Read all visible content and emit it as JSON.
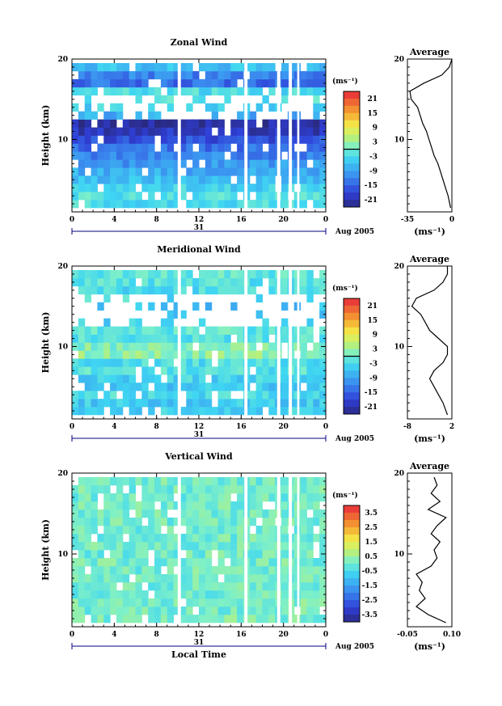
{
  "chart_data": [
    {
      "type": "heatmap",
      "title": "Zonal Wind",
      "ylabel": "Height (km)",
      "xlabel": "",
      "x_ticks": [
        "0",
        "4",
        "8",
        "12",
        "16",
        "20",
        "0"
      ],
      "y_ticks": [
        "10",
        "20"
      ],
      "xlim": [
        0,
        24
      ],
      "ylim": [
        1,
        20
      ],
      "date_label": "31",
      "month_label": "Aug 2005",
      "colorbar": {
        "unit": "(ms⁻¹)",
        "ticks": [
          "21",
          "15",
          "9",
          "3",
          "-3",
          "-9",
          "-15",
          "-21"
        ],
        "range": [
          -24,
          24
        ],
        "contour_at": 0
      },
      "rows": [
        {
          "z": 2,
          "v": -3
        },
        {
          "z": 3,
          "v": -2
        },
        {
          "z": 4,
          "v": -4
        },
        {
          "z": 5,
          "v": -6
        },
        {
          "z": 6,
          "v": -8
        },
        {
          "z": 7,
          "v": -10
        },
        {
          "z": 8,
          "v": -12
        },
        {
          "z": 9,
          "v": -14
        },
        {
          "z": 10,
          "v": -17
        },
        {
          "z": 11,
          "v": -20
        },
        {
          "z": 12,
          "v": -22
        },
        {
          "z": 13,
          "v": -8
        },
        {
          "z": 14,
          "v": -4
        },
        {
          "z": 15,
          "v": -2
        },
        {
          "z": 16,
          "v": -3
        },
        {
          "z": 17,
          "v": -14
        },
        {
          "z": 18,
          "v": -12
        },
        {
          "z": 19,
          "v": -6
        }
      ],
      "average": {
        "title": "Average",
        "xlabel": "(ms⁻¹)",
        "x_ticks": [
          "-35",
          "0"
        ],
        "xlim": [
          -35,
          0
        ],
        "y_ticks": [
          "10",
          "20"
        ],
        "profile": [
          {
            "z": 1.5,
            "v": -1
          },
          {
            "z": 3,
            "v": -3
          },
          {
            "z": 4,
            "v": -5
          },
          {
            "z": 5,
            "v": -7
          },
          {
            "z": 6,
            "v": -9
          },
          {
            "z": 7,
            "v": -11
          },
          {
            "z": 8,
            "v": -14
          },
          {
            "z": 9,
            "v": -16
          },
          {
            "z": 10,
            "v": -18
          },
          {
            "z": 11,
            "v": -20
          },
          {
            "z": 12,
            "v": -23
          },
          {
            "z": 13,
            "v": -25
          },
          {
            "z": 14,
            "v": -27
          },
          {
            "z": 15,
            "v": -32
          },
          {
            "z": 16,
            "v": -33
          },
          {
            "z": 17,
            "v": -22
          },
          {
            "z": 18,
            "v": -8
          },
          {
            "z": 19,
            "v": -2
          },
          {
            "z": 20,
            "v": 0
          }
        ]
      }
    },
    {
      "type": "heatmap",
      "title": "Meridional Wind",
      "ylabel": "Height (km)",
      "xlabel": "",
      "x_ticks": [
        "0",
        "4",
        "8",
        "12",
        "16",
        "20",
        "0"
      ],
      "y_ticks": [
        "10",
        "20"
      ],
      "xlim": [
        0,
        24
      ],
      "ylim": [
        1,
        20
      ],
      "date_label": "31",
      "month_label": "Aug 2005",
      "colorbar": {
        "unit": "(ms⁻¹)",
        "ticks": [
          "21",
          "15",
          "9",
          "3",
          "-3",
          "-9",
          "-15",
          "-21"
        ],
        "range": [
          -24,
          24
        ],
        "contour_at": 0
      },
      "rows": [
        {
          "z": 2,
          "v": -4
        },
        {
          "z": 3,
          "v": -5
        },
        {
          "z": 4,
          "v": -3
        },
        {
          "z": 5,
          "v": -5
        },
        {
          "z": 6,
          "v": -4
        },
        {
          "z": 7,
          "v": -2
        },
        {
          "z": 8,
          "v": -3
        },
        {
          "z": 9,
          "v": 2
        },
        {
          "z": 10,
          "v": 1
        },
        {
          "z": 11,
          "v": -2
        },
        {
          "z": 12,
          "v": -1
        },
        {
          "z": 13,
          "v": -4
        },
        {
          "z": 14,
          "v": -5
        },
        {
          "z": 15,
          "v": -6
        },
        {
          "z": 16,
          "v": -3
        },
        {
          "z": 17,
          "v": -3
        },
        {
          "z": 18,
          "v": -2
        },
        {
          "z": 19,
          "v": -1
        }
      ],
      "average": {
        "title": "Average",
        "xlabel": "(ms⁻¹)",
        "x_ticks": [
          "-8",
          "2"
        ],
        "xlim": [
          -8,
          2
        ],
        "y_ticks": [
          "10",
          "20"
        ],
        "profile": [
          {
            "z": 1.5,
            "v": 1
          },
          {
            "z": 3,
            "v": 0
          },
          {
            "z": 4,
            "v": -1
          },
          {
            "z": 5,
            "v": -2
          },
          {
            "z": 6,
            "v": -3
          },
          {
            "z": 7,
            "v": -2
          },
          {
            "z": 8,
            "v": 0
          },
          {
            "z": 9,
            "v": 1
          },
          {
            "z": 10,
            "v": 1
          },
          {
            "z": 11,
            "v": -1
          },
          {
            "z": 12,
            "v": -3
          },
          {
            "z": 13,
            "v": -4
          },
          {
            "z": 14,
            "v": -5
          },
          {
            "z": 15,
            "v": -7
          },
          {
            "z": 16,
            "v": -6
          },
          {
            "z": 17,
            "v": -2
          },
          {
            "z": 18,
            "v": 0
          },
          {
            "z": 19,
            "v": 1
          },
          {
            "z": 20,
            "v": 1
          }
        ]
      }
    },
    {
      "type": "heatmap",
      "title": "Vertical Wind",
      "ylabel": "Height (km)",
      "xlabel": "Local Time",
      "x_ticks": [
        "0",
        "4",
        "8",
        "12",
        "16",
        "20",
        "0"
      ],
      "y_ticks": [
        "10",
        "20"
      ],
      "xlim": [
        0,
        24
      ],
      "ylim": [
        1,
        20
      ],
      "date_label": "31",
      "month_label": "Aug 2005",
      "colorbar": {
        "unit": "(ms⁻¹)",
        "ticks": [
          "3.5",
          "2.5",
          "1.5",
          "0.5",
          "-0.5",
          "-1.5",
          "-2.5",
          "-3.5"
        ],
        "range": [
          -4,
          4
        ],
        "contour_at": null
      },
      "rows": [
        {
          "z": 2,
          "v": 0.1
        },
        {
          "z": 3,
          "v": 0.0
        },
        {
          "z": 4,
          "v": 0.1
        },
        {
          "z": 5,
          "v": 0.0
        },
        {
          "z": 6,
          "v": 0.0
        },
        {
          "z": 7,
          "v": 0.05
        },
        {
          "z": 8,
          "v": 0.0
        },
        {
          "z": 9,
          "v": 0.05
        },
        {
          "z": 10,
          "v": 0.0
        },
        {
          "z": 11,
          "v": 0.02
        },
        {
          "z": 12,
          "v": 0.0
        },
        {
          "z": 13,
          "v": 0.03
        },
        {
          "z": 14,
          "v": 0.0
        },
        {
          "z": 15,
          "v": 0.01
        },
        {
          "z": 16,
          "v": 0.02
        },
        {
          "z": 17,
          "v": 0.0
        },
        {
          "z": 18,
          "v": 0.03
        },
        {
          "z": 19,
          "v": 0.0
        }
      ],
      "average": {
        "title": "Average",
        "xlabel": "(ms⁻¹)",
        "x_ticks": [
          "-0.05",
          "0.10"
        ],
        "xlim": [
          -0.05,
          0.1
        ],
        "y_ticks": [
          "10",
          "20"
        ],
        "profile": [
          {
            "z": 1.5,
            "v": 0.08
          },
          {
            "z": 2.5,
            "v": 0.02
          },
          {
            "z": 3.5,
            "v": -0.02
          },
          {
            "z": 4.5,
            "v": 0.01
          },
          {
            "z": 5.5,
            "v": -0.01
          },
          {
            "z": 6.5,
            "v": 0.0
          },
          {
            "z": 7.5,
            "v": -0.02
          },
          {
            "z": 8.5,
            "v": 0.03
          },
          {
            "z": 9.5,
            "v": 0.05
          },
          {
            "z": 10.5,
            "v": 0.04
          },
          {
            "z": 11.5,
            "v": 0.06
          },
          {
            "z": 12.5,
            "v": 0.03
          },
          {
            "z": 13.5,
            "v": 0.05
          },
          {
            "z": 14.5,
            "v": 0.08
          },
          {
            "z": 15.5,
            "v": 0.02
          },
          {
            "z": 16.5,
            "v": 0.06
          },
          {
            "z": 17.5,
            "v": 0.03
          },
          {
            "z": 18.5,
            "v": 0.05
          },
          {
            "z": 19.5,
            "v": 0.04
          }
        ]
      }
    }
  ]
}
